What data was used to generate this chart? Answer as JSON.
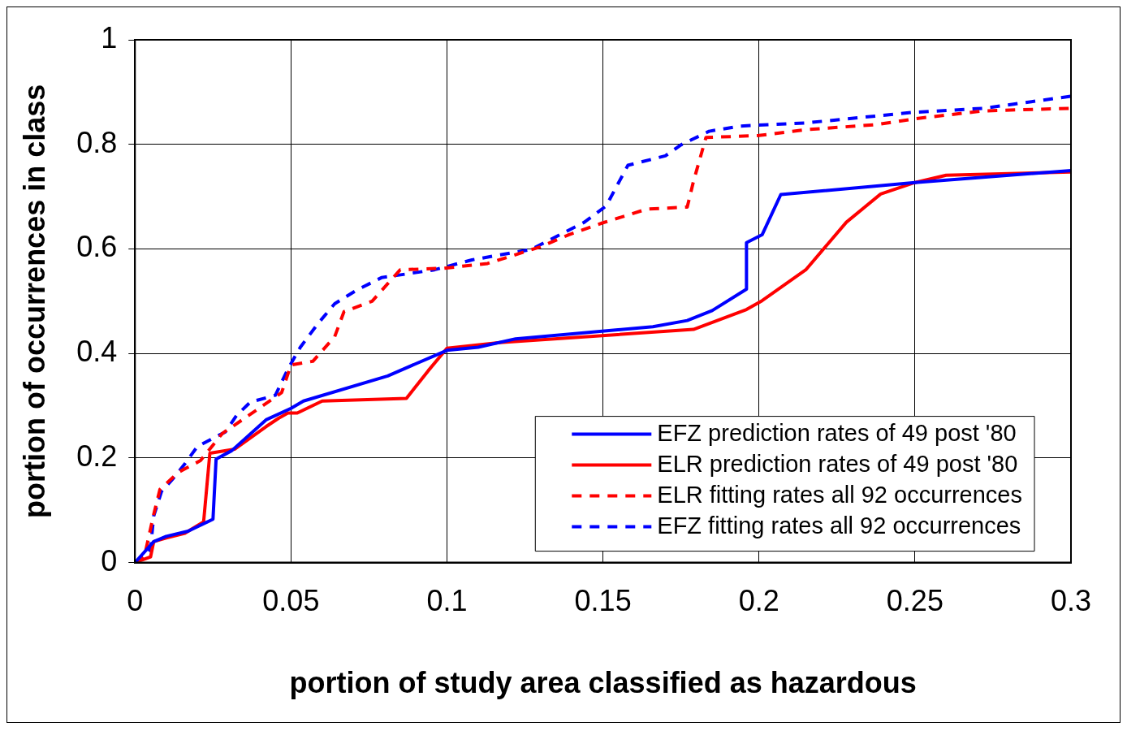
{
  "chart_data": {
    "type": "line",
    "xlabel": "portion of study area classified as hazardous",
    "ylabel": "portion of occurrences in class",
    "xlim": [
      0,
      0.3
    ],
    "ylim": [
      0,
      1
    ],
    "xticks": [
      0,
      0.05,
      0.1,
      0.15,
      0.2,
      0.25,
      0.3
    ],
    "yticks": [
      0,
      0.2,
      0.4,
      0.6,
      0.8,
      1
    ],
    "grid": true,
    "legend": "bottom right",
    "marker": "none",
    "series": [
      {
        "name": "EFZ prediction rates of 49 post '80",
        "color": "#0000ff",
        "line_style": "solid",
        "x": [
          0,
          0.006,
          0.01,
          0.017,
          0.025,
          0.026,
          0.031,
          0.042,
          0.05,
          0.054,
          0.081,
          0.1,
          0.11,
          0.122,
          0.166,
          0.177,
          0.185,
          0.196,
          0.196,
          0.201,
          0.207,
          0.25,
          0.3
        ],
        "values": [
          0,
          0.04,
          0.05,
          0.06,
          0.083,
          0.198,
          0.214,
          0.273,
          0.295,
          0.309,
          0.357,
          0.406,
          0.412,
          0.428,
          0.451,
          0.463,
          0.482,
          0.523,
          0.612,
          0.627,
          0.704,
          0.727,
          0.75
        ]
      },
      {
        "name": "ELR prediction rates of 49 post '80",
        "color": "#ff0000",
        "line_style": "solid",
        "x": [
          0,
          0.005,
          0.006,
          0.01,
          0.016,
          0.022,
          0.024,
          0.032,
          0.042,
          0.046,
          0.049,
          0.052,
          0.06,
          0.087,
          0.094,
          0.1,
          0.117,
          0.179,
          0.196,
          0.201,
          0.215,
          0.228,
          0.239,
          0.25,
          0.26,
          0.3
        ],
        "values": [
          0,
          0.011,
          0.04,
          0.047,
          0.056,
          0.078,
          0.209,
          0.217,
          0.26,
          0.276,
          0.286,
          0.286,
          0.309,
          0.314,
          0.367,
          0.41,
          0.421,
          0.446,
          0.484,
          0.501,
          0.56,
          0.651,
          0.705,
          0.727,
          0.741,
          0.747
        ]
      },
      {
        "name": "ELR fitting rates all 92 occurrences",
        "color": "#ff0000",
        "line_style": "dashed",
        "x": [
          0,
          0.003,
          0.006,
          0.008,
          0.014,
          0.021,
          0.028,
          0.04,
          0.047,
          0.05,
          0.057,
          0.064,
          0.067,
          0.076,
          0.085,
          0.099,
          0.113,
          0.13,
          0.139,
          0.15,
          0.164,
          0.177,
          0.179,
          0.183,
          0.2,
          0.215,
          0.238,
          0.25,
          0.272,
          0.3
        ],
        "values": [
          0,
          0.011,
          0.092,
          0.14,
          0.173,
          0.195,
          0.247,
          0.296,
          0.325,
          0.378,
          0.385,
          0.432,
          0.48,
          0.5,
          0.56,
          0.563,
          0.572,
          0.604,
          0.627,
          0.65,
          0.676,
          0.68,
          0.729,
          0.813,
          0.817,
          0.828,
          0.838,
          0.849,
          0.864,
          0.869
        ]
      },
      {
        "name": "EFZ fitting rates all 92 occurrences",
        "color": "#0000ff",
        "line_style": "dashed",
        "x": [
          0,
          0.003,
          0.005,
          0.006,
          0.0085,
          0.012,
          0.016,
          0.02,
          0.029,
          0.0325,
          0.037,
          0.045,
          0.049,
          0.053,
          0.0585,
          0.064,
          0.071,
          0.079,
          0.096,
          0.108,
          0.127,
          0.144,
          0.151,
          0.158,
          0.17,
          0.175,
          0.184,
          0.194,
          0.215,
          0.249,
          0.272,
          0.3
        ],
        "values": [
          0,
          0.011,
          0.027,
          0.089,
          0.136,
          0.159,
          0.189,
          0.222,
          0.25,
          0.281,
          0.307,
          0.32,
          0.37,
          0.412,
          0.456,
          0.495,
          0.521,
          0.545,
          0.56,
          0.579,
          0.599,
          0.651,
          0.682,
          0.76,
          0.778,
          0.799,
          0.825,
          0.835,
          0.841,
          0.861,
          0.869,
          0.892
        ]
      }
    ]
  }
}
